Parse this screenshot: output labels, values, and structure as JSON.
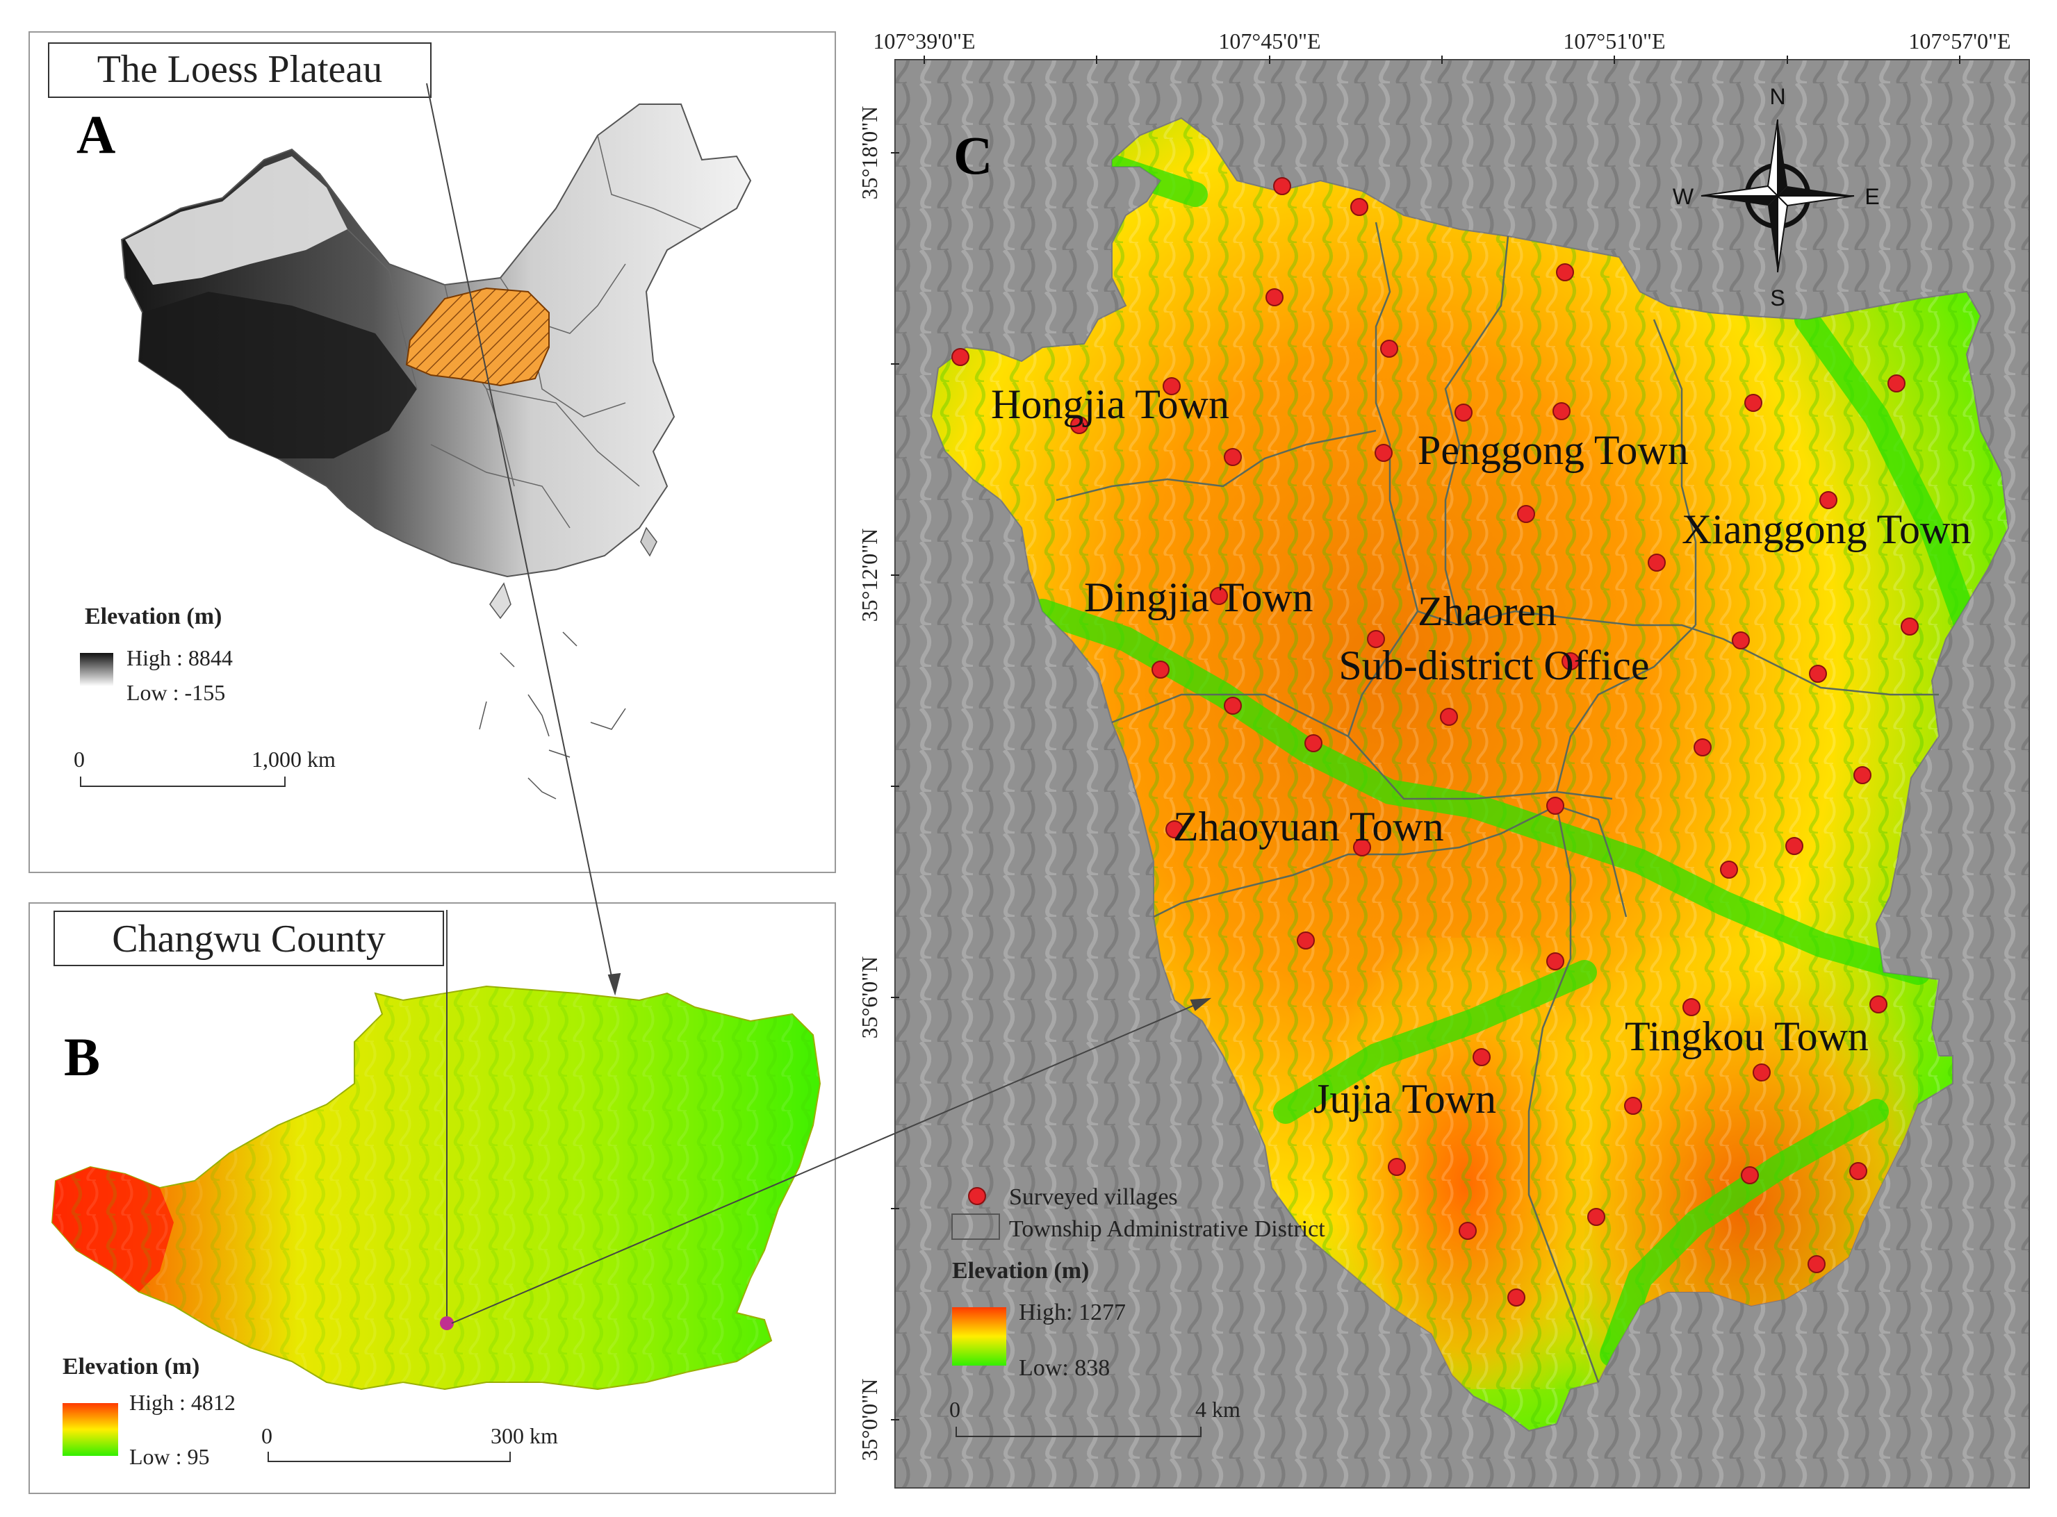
{
  "colors": {
    "village": "#e8232a",
    "elev_high": "#ff3a00",
    "elev_mid": "#ffee00",
    "elev_low": "#33ee00",
    "loess": "#f5a23a",
    "hillshade": "#8c8c8c"
  },
  "panelA": {
    "title": "The Loess Plateau",
    "letter": "A",
    "legend_title": "Elevation (m)",
    "legend_high": "High : 8844",
    "legend_low": "Low : -155",
    "scale_start": "0",
    "scale_end": "1,000 km"
  },
  "panelB": {
    "title": "Changwu County",
    "letter": "B",
    "legend_title": "Elevation (m)",
    "legend_high": "High : 4812",
    "legend_low": "Low : 95",
    "scale_start": "0",
    "scale_end": "300 km"
  },
  "panelC": {
    "letter": "C",
    "lon_ticks": [
      "107°39'0\"E",
      "107°45'0\"E",
      "107°51'0\"E",
      "107°57'0\"E"
    ],
    "lat_ticks": [
      "35°18'0\"N",
      "35°12'0\"N",
      "35°6'0\"N",
      "35°0'0\"N"
    ],
    "compass": {
      "n": "N",
      "s": "S",
      "e": "E",
      "w": "W"
    },
    "towns": {
      "hongjia": "Hongjia Town",
      "penggong": "Penggong Town",
      "xianggong": "Xianggong Town",
      "dingjia": "Dingjia Town",
      "zhaoren_1": "Zhaoren",
      "zhaoren_2": "Sub-district Office",
      "zhaoyuan": "Zhaoyuan Town",
      "jujia": "Jujia Town",
      "tingkou": "Tingkou Town"
    },
    "legend": {
      "villages": "Surveyed  villages",
      "district": "Township Administrative District",
      "elev_title": "Elevation  (m)",
      "high": "High: 1277",
      "low": "Low: 838",
      "scale_start": "0",
      "scale_end": "4 km"
    }
  }
}
